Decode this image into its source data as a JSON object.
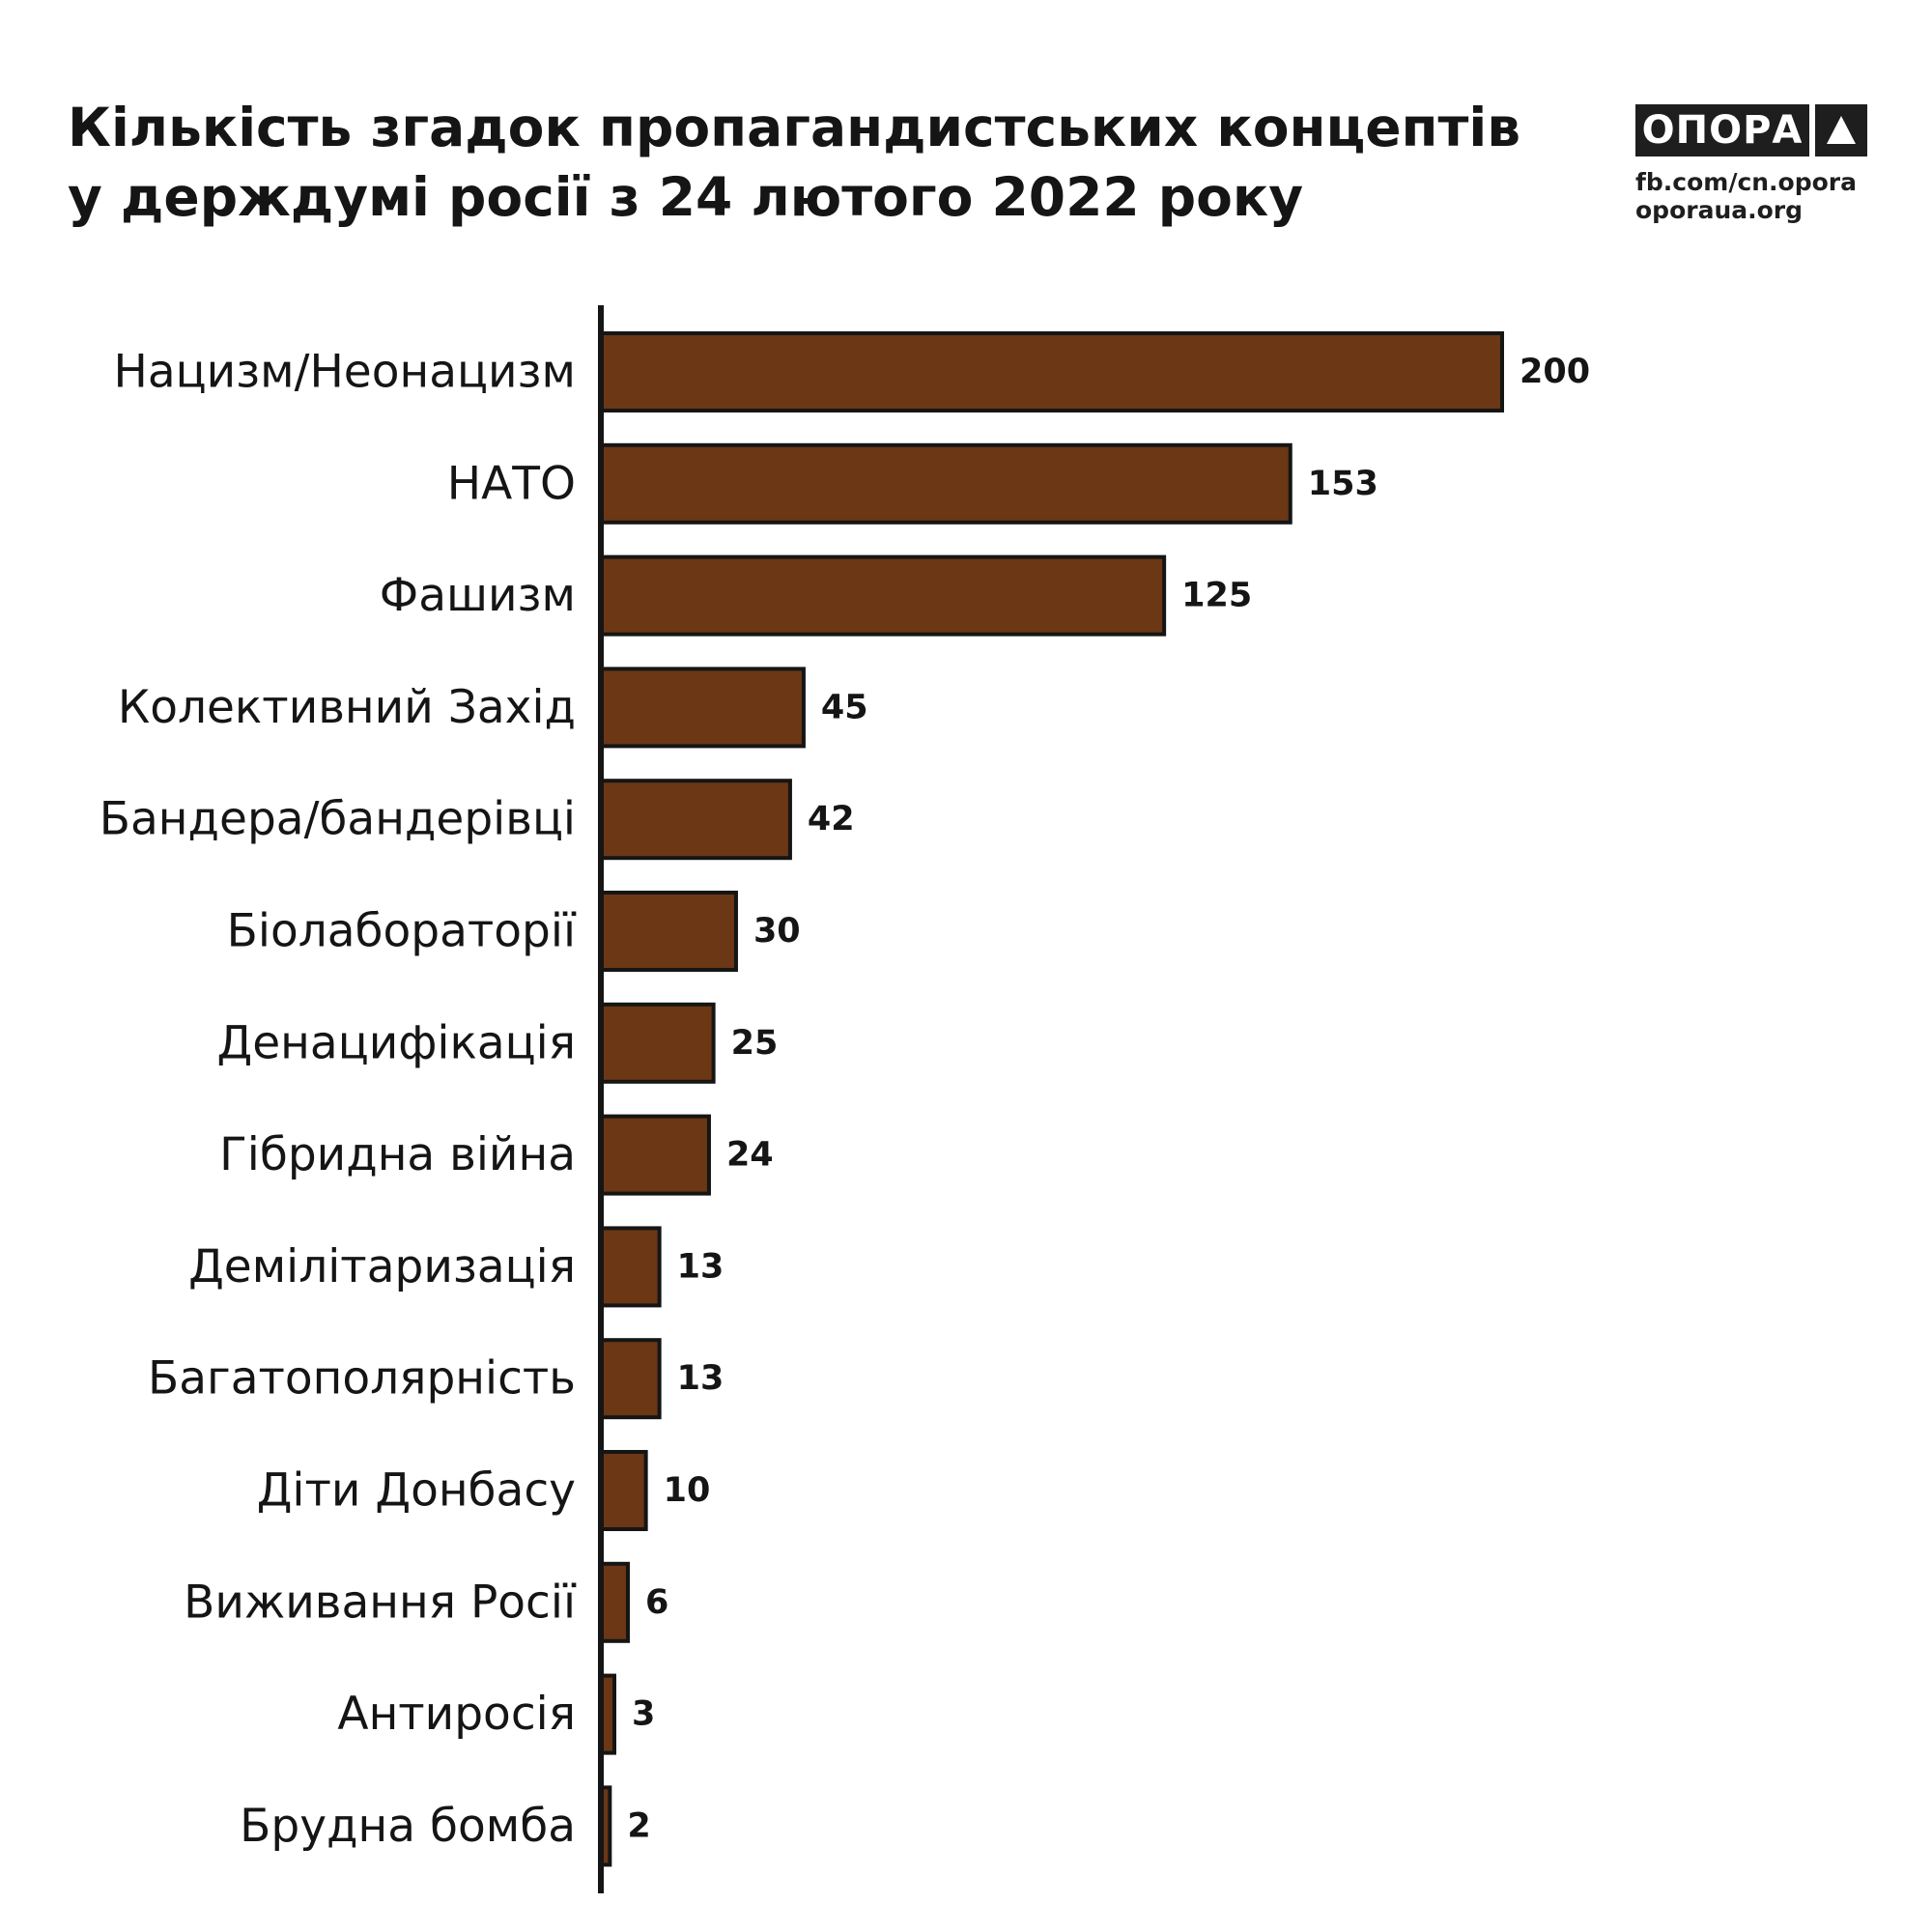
{
  "header": {
    "title_line1": "Кількість згадок пропагандистських концептів",
    "title_line2": "у держдумі росії з 24 лютого 2022 року"
  },
  "brand": {
    "logo_text": "ОПОРА",
    "logo_icon": "triangle-up-icon",
    "link1": "fb.com/cn.opora",
    "link2": "oporaua.org"
  },
  "colors": {
    "bar_fill": "#6b3714",
    "bar_stroke": "#151515",
    "axis": "#151515",
    "text": "#151515"
  },
  "chart_data": {
    "type": "bar",
    "orientation": "horizontal",
    "title": "Кількість згадок пропагандистських концептів у держдумі росії з 24 лютого 2022 року",
    "xlabel": "",
    "ylabel": "",
    "xlim": [
      0,
      200
    ],
    "grid": false,
    "legend": "none",
    "categories": [
      "Нацизм/Неонацизм",
      "НАТО",
      "Фашизм",
      "Колективний Захід",
      "Бандера/бандерівці",
      "Біолабораторії",
      "Денацифікація",
      "Гібридна війна",
      "Демілітаризація",
      "Багатополярність",
      "Діти Донбасу",
      "Виживання Росії",
      "Антиросія",
      "Брудна бомба"
    ],
    "values": [
      200,
      153,
      125,
      45,
      42,
      30,
      25,
      24,
      13,
      13,
      10,
      6,
      3,
      2
    ]
  }
}
